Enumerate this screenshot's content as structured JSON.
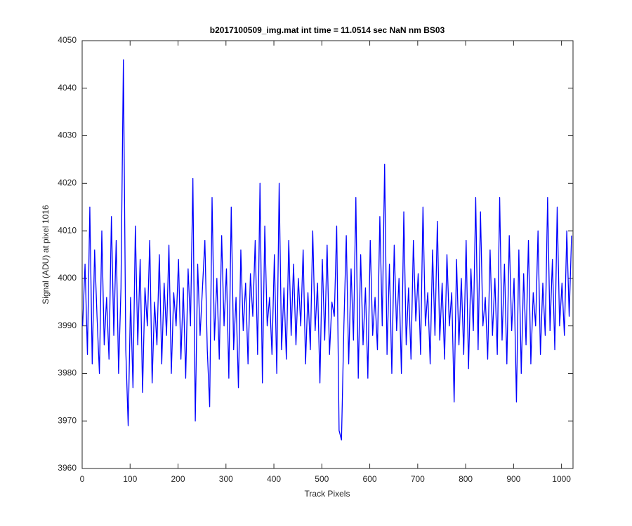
{
  "chart_data": {
    "type": "line",
    "title": "b2017100509_img.mat int time = 11.0514 sec  NaN nm BS03",
    "xlabel": "Track Pixels",
    "ylabel": "Signal (ADU) at pixel 1016",
    "color": "#0000ff",
    "xlim": [
      0,
      1024
    ],
    "xticks": [
      0,
      100,
      200,
      300,
      400,
      500,
      600,
      700,
      800,
      900,
      1000
    ],
    "ylim": [
      3960,
      4050
    ],
    "yticks": [
      3960,
      3970,
      3980,
      3990,
      4000,
      4010,
      4020,
      4030,
      4040,
      4050
    ],
    "x": [
      1,
      6,
      11,
      16,
      21,
      26,
      31,
      36,
      41,
      46,
      51,
      56,
      61,
      66,
      71,
      76,
      81,
      86,
      91,
      96,
      101,
      106,
      111,
      116,
      121,
      126,
      131,
      136,
      141,
      146,
      151,
      156,
      161,
      166,
      171,
      176,
      181,
      186,
      191,
      196,
      201,
      206,
      211,
      216,
      221,
      226,
      231,
      236,
      241,
      246,
      251,
      256,
      261,
      266,
      271,
      276,
      281,
      286,
      291,
      296,
      301,
      306,
      311,
      316,
      321,
      326,
      331,
      336,
      341,
      346,
      351,
      356,
      361,
      366,
      371,
      376,
      381,
      386,
      391,
      396,
      401,
      406,
      411,
      416,
      421,
      426,
      431,
      436,
      441,
      446,
      451,
      456,
      461,
      466,
      471,
      476,
      481,
      486,
      491,
      496,
      501,
      506,
      511,
      516,
      521,
      526,
      531,
      536,
      541,
      546,
      551,
      556,
      561,
      566,
      571,
      576,
      581,
      586,
      591,
      596,
      601,
      606,
      611,
      616,
      621,
      626,
      631,
      636,
      641,
      646,
      651,
      656,
      661,
      666,
      671,
      676,
      681,
      686,
      691,
      696,
      701,
      706,
      711,
      716,
      721,
      726,
      731,
      736,
      741,
      746,
      751,
      756,
      761,
      766,
      771,
      776,
      781,
      786,
      791,
      796,
      801,
      806,
      811,
      816,
      821,
      826,
      831,
      836,
      841,
      846,
      851,
      856,
      861,
      866,
      871,
      876,
      881,
      886,
      891,
      896,
      901,
      906,
      911,
      916,
      921,
      926,
      931,
      936,
      941,
      946,
      951,
      956,
      961,
      966,
      971,
      976,
      981,
      986,
      991,
      996,
      1001,
      1006,
      1011,
      1016,
      1021
    ],
    "values": [
      3990,
      4003,
      3984,
      4015,
      3982,
      4006,
      3992,
      3980,
      4010,
      3986,
      3996,
      3983,
      4013,
      3988,
      4008,
      3980,
      3998,
      4046,
      3985,
      3969,
      3996,
      3977,
      4011,
      3986,
      4004,
      3976,
      3998,
      3990,
      4008,
      3978,
      3995,
      3986,
      4005,
      3982,
      3999,
      3988,
      4007,
      3980,
      3997,
      3990,
      4004,
      3983,
      3998,
      3979,
      4002,
      3990,
      4021,
      3970,
      4003,
      3988,
      3998,
      4008,
      3985,
      3973,
      4017,
      3987,
      4000,
      3983,
      4009,
      3990,
      4002,
      3979,
      4015,
      3985,
      3996,
      3977,
      4006,
      3989,
      3999,
      3982,
      4001,
      3992,
      4008,
      3984,
      4020,
      3978,
      4011,
      3990,
      3996,
      3984,
      4005,
      3980,
      4020,
      3985,
      3998,
      3983,
      4008,
      3988,
      4003,
      3986,
      4000,
      3990,
      4006,
      3982,
      3997,
      3985,
      4010,
      3989,
      3999,
      3978,
      4004,
      3987,
      4007,
      3984,
      3995,
      3992,
      4011,
      3968,
      3966,
      3990,
      4009,
      3982,
      4002,
      3987,
      4017,
      3979,
      4005,
      3986,
      3998,
      3979,
      4008,
      3988,
      3996,
      3985,
      4013,
      3990,
      4024,
      3984,
      4003,
      3980,
      4007,
      3989,
      4000,
      3980,
      4014,
      3986,
      3998,
      3983,
      4008,
      3991,
      4001,
      3984,
      4015,
      3990,
      3997,
      3982,
      4006,
      3988,
      4012,
      3987,
      3999,
      3983,
      4005,
      3990,
      3997,
      3974,
      4004,
      3986,
      4000,
      3984,
      4008,
      3981,
      4002,
      3989,
      4017,
      3985,
      4014,
      3990,
      3996,
      3983,
      4006,
      3988,
      4000,
      3984,
      4017,
      3987,
      4003,
      3982,
      4009,
      3989,
      4000,
      3974,
      4006,
      3980,
      4001,
      3986,
      4008,
      3982,
      3997,
      3990,
      4010,
      3984,
      3999,
      3988,
      4017,
      3989,
      4004,
      3985,
      4015,
      3990,
      3999,
      3988,
      4010,
      3992,
      4009
    ]
  }
}
